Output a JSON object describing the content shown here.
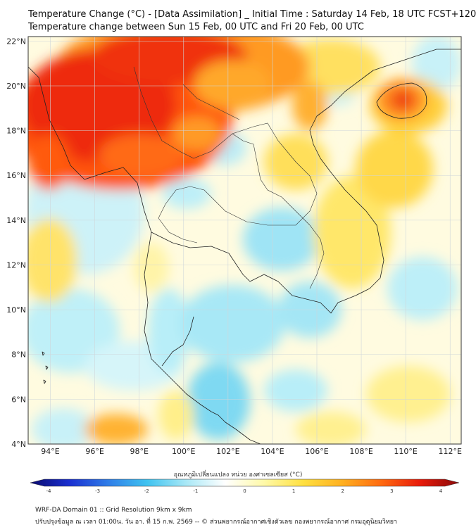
{
  "header": {
    "title_line1": "Temperature Change (°C) - [Data Assimilation] _ Initial Time : Saturday 14 Feb, 18 UTC FCST+120",
    "title_line2": "Temperature change between Sun 15 Feb, 00 UTC and Fri 20 Feb, 00 UTC"
  },
  "map": {
    "lon_ticks": [
      "94°E",
      "96°E",
      "98°E",
      "100°E",
      "102°E",
      "104°E",
      "106°E",
      "108°E",
      "110°E",
      "112°E"
    ],
    "lat_ticks": [
      "22°N",
      "20°N",
      "18°N",
      "16°N",
      "14°N",
      "12°N",
      "10°N",
      "8°N",
      "6°N",
      "4°N"
    ],
    "lon_range": [
      93,
      112.5
    ],
    "lat_range": [
      4,
      22.2
    ]
  },
  "colorbar": {
    "label": "อุณหภูมิเปลี่ยนแปลง หน่วย องศาเซลเซียส (°C)",
    "ticks": [
      "-4",
      "-3",
      "-2",
      "-1",
      "0",
      "1",
      "2",
      "3",
      "4"
    ],
    "range": [
      -4,
      4
    ],
    "colors": [
      "#0a0a6e",
      "#1a2fd0",
      "#2f7de8",
      "#3fc3f0",
      "#a9e8f6",
      "#ffffff",
      "#fff9a8",
      "#ffe040",
      "#ffb020",
      "#ff6a10",
      "#e81a0a",
      "#8a0a0a"
    ]
  },
  "footer": {
    "line1": "WRF-DA Domain 01 :: Grid Resolution 9km x 9km",
    "line2": "ปรับปรุงข้อมูล ณ เวลา 01:00น. วัน อา. ที่ 15 ก.พ. 2569 -- © ส่วนพยากรณ์อากาศเชิงตัวเลข กองพยากรณ์อากาศ กรมอุตุนิยมวิทยา"
  }
}
